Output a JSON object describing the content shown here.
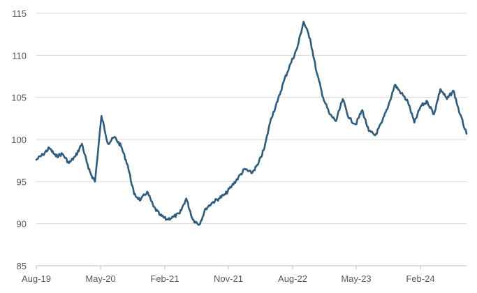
{
  "chart_data": {
    "type": "line",
    "title": "",
    "xlabel": "",
    "ylabel": "",
    "ylim": [
      85,
      115
    ],
    "yticks": [
      85,
      90,
      95,
      100,
      105,
      110,
      115
    ],
    "xticks": [
      "Aug-19",
      "May-20",
      "Feb-21",
      "Nov-21",
      "Aug-22",
      "May-23",
      "Feb-24"
    ],
    "grid": "horizontal",
    "legend": "none",
    "line_color": "#2f5b7c",
    "series": [
      {
        "x": [
          "Aug-19",
          "Sep-19",
          "Oct-19",
          "Nov-19",
          "Dec-19",
          "Jan-20",
          "Feb-20",
          "Feb-20",
          "Mar-20",
          "Mar-20",
          "Mar-20",
          "Apr-20",
          "Apr-20",
          "May-20",
          "Jun-20",
          "Jul-20",
          "Aug-20",
          "Sep-20",
          "Oct-20",
          "Nov-20",
          "Dec-20",
          "Jan-21",
          "Feb-21",
          "Mar-21",
          "Apr-21",
          "May-21",
          "Jun-21",
          "Jul-21",
          "Aug-21",
          "Sep-21",
          "Oct-21",
          "Nov-21",
          "Dec-21",
          "Jan-22",
          "Feb-22",
          "Mar-22",
          "Apr-22",
          "May-22",
          "Jun-22",
          "Jul-22",
          "Aug-22",
          "Sep-22",
          "Sep-22",
          "Oct-22",
          "Nov-22",
          "Dec-22",
          "Jan-23",
          "Feb-23",
          "Mar-23",
          "Apr-23",
          "May-23",
          "Jun-23",
          "Jul-23",
          "Aug-23",
          "Sep-23",
          "Oct-23",
          "Nov-23",
          "Dec-23",
          "Jan-24",
          "Feb-24",
          "Mar-24",
          "Apr-24",
          "May-24",
          "Jun-24",
          "Jul-24",
          "Aug-24",
          "Sep-24"
        ],
        "values": [
          97.6,
          98.2,
          99.0,
          98.0,
          98.3,
          97.2,
          98.0,
          99.5,
          96.5,
          95.0,
          102.8,
          99.5,
          100.3,
          99.2,
          97.0,
          93.5,
          92.8,
          93.8,
          92.0,
          91.0,
          90.5,
          90.8,
          91.2,
          93.0,
          90.5,
          89.9,
          91.8,
          92.5,
          93.0,
          93.5,
          94.5,
          95.5,
          96.5,
          96.0,
          97.0,
          99.0,
          102.5,
          104.5,
          107.0,
          109.0,
          110.8,
          114.0,
          112.0,
          108.0,
          105.0,
          103.0,
          102.2,
          104.8,
          102.5,
          101.8,
          103.5,
          101.0,
          100.5,
          102.0,
          104.0,
          106.5,
          105.5,
          104.5,
          102.0,
          104.0,
          104.5,
          103.0,
          106.0,
          104.8,
          105.8,
          103.0,
          100.7
        ]
      }
    ]
  }
}
